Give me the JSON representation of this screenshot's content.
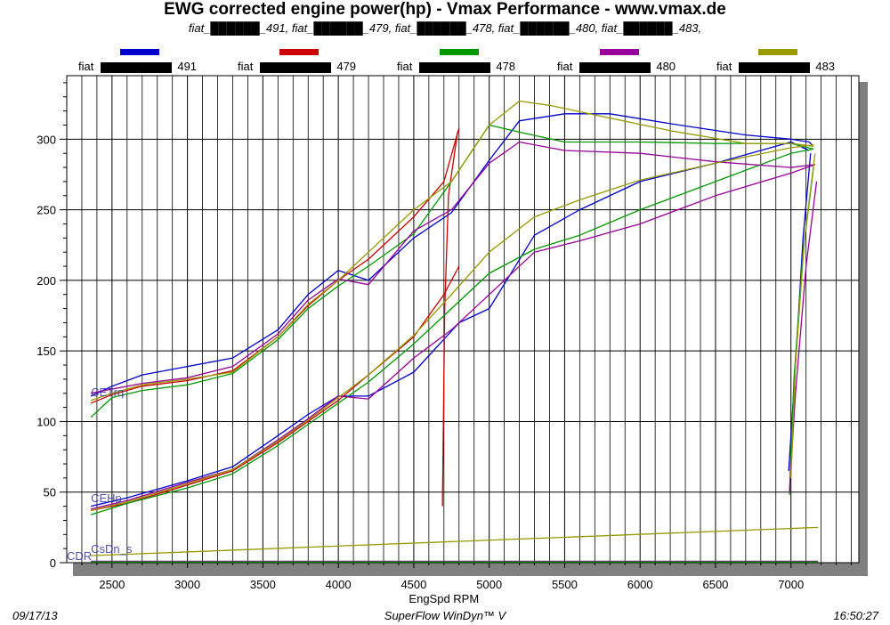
{
  "header": {
    "title": "EWG corrected engine power(hp) - Vmax Performance - www.vmax.de",
    "subtitle": "fiat_██████_491, fiat_██████_479, fiat_██████_478, fiat_██████_480, fiat_██████_483,"
  },
  "legend": [
    {
      "prefix": "fiat",
      "suffix": "491",
      "color": "#0000cc"
    },
    {
      "prefix": "fiat",
      "suffix": "479",
      "color": "#cc0000"
    },
    {
      "prefix": "fiat",
      "suffix": "478",
      "color": "#009900"
    },
    {
      "prefix": "fiat",
      "suffix": "480",
      "color": "#990099"
    },
    {
      "prefix": "fiat",
      "suffix": "483",
      "color": "#999900"
    }
  ],
  "footer": {
    "date": "09/17/13",
    "software": "SuperFlow WinDyn™ V",
    "time": "16:50:27"
  },
  "chart_data": {
    "type": "line",
    "title": "EWG corrected engine power(hp) - Vmax Performance - www.vmax.de",
    "xlabel": "EngSpd RPM",
    "ylabel": "",
    "xlim": [
      2200,
      7450
    ],
    "ylim": [
      0,
      345
    ],
    "xticks": [
      2500,
      3000,
      3500,
      4000,
      4500,
      5000,
      5500,
      6000,
      6500,
      7000
    ],
    "yticks": [
      0,
      50,
      100,
      150,
      200,
      250,
      300
    ],
    "grid": true,
    "curve_labels": [
      {
        "text": "CETrq",
        "x": 2360,
        "y": 118
      },
      {
        "text": "CEHp",
        "x": 2360,
        "y": 43
      },
      {
        "text": "CsDn_s",
        "x": 2360,
        "y": 7
      },
      {
        "text": "CDR",
        "x": 2200,
        "y": 2
      }
    ],
    "series": [
      {
        "name": "491 CETrq",
        "color": "#0000cc",
        "x": [
          2360,
          2500,
          2700,
          3000,
          3300,
          3600,
          3800,
          4000,
          4200,
          4500,
          4750,
          5000,
          5200,
          5500,
          5800,
          6200,
          6700,
          7000,
          7120,
          7150
        ],
        "y": [
          118,
          125,
          133,
          139,
          145,
          165,
          190,
          207,
          200,
          230,
          248,
          285,
          313,
          318,
          318,
          311,
          303,
          300,
          298,
          295
        ]
      },
      {
        "name": "491 CEHp",
        "color": "#0000cc",
        "x": [
          2360,
          2600,
          3000,
          3300,
          3600,
          3800,
          4000,
          4200,
          4500,
          4800,
          5000,
          5300,
          5600,
          6000,
          6500,
          7000,
          7120
        ],
        "y": [
          40,
          46,
          58,
          68,
          90,
          105,
          118,
          118,
          135,
          170,
          180,
          232,
          250,
          270,
          283,
          298,
          292
        ]
      },
      {
        "name": "491 decel",
        "color": "#0000cc",
        "x": [
          7130,
          7080,
          7030,
          6985
        ],
        "y": [
          290,
          230,
          140,
          65
        ]
      },
      {
        "name": "479 CETrq",
        "color": "#cc0000",
        "x": [
          2360,
          2500,
          2700,
          3000,
          3300,
          3600,
          3800,
          4000,
          4200,
          4500,
          4700,
          4800
        ],
        "y": [
          113,
          119,
          125,
          129,
          136,
          160,
          182,
          200,
          215,
          245,
          270,
          308
        ]
      },
      {
        "name": "479 CEHp",
        "color": "#cc0000",
        "x": [
          2360,
          2600,
          3000,
          3300,
          3600,
          3800,
          4000,
          4200,
          4500,
          4700,
          4800
        ],
        "y": [
          37,
          42,
          55,
          65,
          85,
          100,
          115,
          133,
          160,
          190,
          210
        ]
      },
      {
        "name": "479 decel",
        "color": "#cc0000",
        "x": [
          4790,
          4730,
          4705,
          4690
        ],
        "y": [
          305,
          260,
          180,
          40
        ]
      },
      {
        "name": "478 CETrq",
        "color": "#009900",
        "x": [
          2360,
          2500,
          2700,
          3000,
          3300,
          3600,
          3800,
          4000,
          4200,
          4500,
          4750,
          5000,
          5200,
          5500,
          6000,
          6500,
          7000,
          7150
        ],
        "y": [
          103,
          117,
          122,
          126,
          134,
          158,
          180,
          196,
          210,
          233,
          270,
          310,
          305,
          298,
          298,
          297,
          297,
          293
        ]
      },
      {
        "name": "478 CEHp",
        "color": "#009900",
        "x": [
          2360,
          2600,
          3000,
          3300,
          3600,
          3800,
          4000,
          4200,
          4500,
          4750,
          5000,
          5300,
          5600,
          6000,
          6500,
          7000,
          7150
        ],
        "y": [
          34,
          42,
          53,
          63,
          83,
          98,
          113,
          128,
          155,
          180,
          205,
          222,
          232,
          250,
          270,
          290,
          293
        ]
      },
      {
        "name": "478 decel",
        "color": "#009900",
        "x": [
          7150,
          7080,
          7020,
          6990
        ],
        "y": [
          280,
          220,
          130,
          48
        ]
      },
      {
        "name": "480 CETrq",
        "color": "#990099",
        "x": [
          2360,
          2500,
          2700,
          3000,
          3300,
          3600,
          3800,
          4000,
          4200,
          4500,
          4750,
          5000,
          5200,
          5500,
          6000,
          6500,
          7000,
          7160
        ],
        "y": [
          120,
          123,
          127,
          131,
          139,
          162,
          186,
          201,
          197,
          235,
          250,
          283,
          298,
          292,
          290,
          284,
          280,
          282
        ]
      },
      {
        "name": "480 CEHp",
        "color": "#990099",
        "x": [
          2360,
          2600,
          3000,
          3300,
          3600,
          3800,
          4000,
          4200,
          4500,
          4750,
          5000,
          5300,
          5600,
          6000,
          6500,
          7000,
          7160
        ],
        "y": [
          38,
          44,
          57,
          66,
          87,
          102,
          118,
          116,
          145,
          165,
          190,
          220,
          228,
          240,
          260,
          276,
          282
        ]
      },
      {
        "name": "480 decel",
        "color": "#990099",
        "x": [
          7170,
          7100,
          7030,
          6990
        ],
        "y": [
          270,
          210,
          120,
          50
        ]
      },
      {
        "name": "483 CETrq",
        "color": "#999900",
        "x": [
          2360,
          2500,
          2700,
          3000,
          3300,
          3600,
          3800,
          4000,
          4200,
          4500,
          4750,
          5000,
          5200,
          5400,
          5800,
          6200,
          6700,
          7000,
          7150
        ],
        "y": [
          115,
          120,
          126,
          130,
          135,
          160,
          183,
          200,
          220,
          250,
          270,
          310,
          327,
          324,
          315,
          306,
          297,
          297,
          295
        ]
      },
      {
        "name": "483 CEHp",
        "color": "#999900",
        "x": [
          2360,
          2600,
          3000,
          3300,
          3600,
          3800,
          4000,
          4200,
          4500,
          4750,
          5000,
          5300,
          5600,
          6000,
          6500,
          7000,
          7150
        ],
        "y": [
          37,
          43,
          56,
          66,
          86,
          101,
          117,
          133,
          161,
          190,
          220,
          245,
          257,
          271,
          283,
          294,
          296
        ]
      },
      {
        "name": "483 decel",
        "color": "#999900",
        "x": [
          7160,
          7090,
          7030,
          7000
        ],
        "y": [
          290,
          230,
          140,
          60
        ]
      },
      {
        "name": "CsDn_s",
        "color": "#999900",
        "x": [
          2360,
          7180
        ],
        "y": [
          5,
          25
        ]
      },
      {
        "name": "CDR",
        "color": "#990099",
        "x": [
          2360,
          7180
        ],
        "y": [
          1,
          1
        ]
      },
      {
        "name": "CDR base",
        "color": "#009900",
        "x": [
          2360,
          7180
        ],
        "y": [
          0.5,
          0.5
        ]
      }
    ]
  }
}
